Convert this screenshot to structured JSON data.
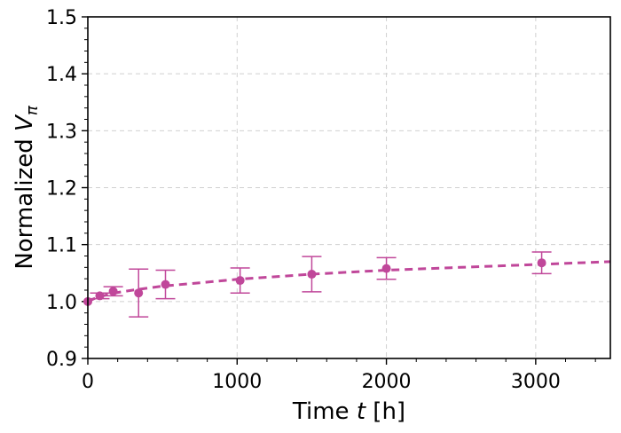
{
  "chart_data": {
    "type": "scatter",
    "xlabel_prefix": "Time ",
    "xlabel_var": "t",
    "xlabel_suffix": " [h]",
    "ylabel_prefix": "Normalized ",
    "ylabel_var": "V",
    "ylabel_sub": "π",
    "xlim": [
      0,
      3500
    ],
    "ylim": [
      0.9,
      1.5
    ],
    "xticks": [
      0,
      1000,
      2000,
      3000
    ],
    "xtick_labels": [
      "0",
      "1000",
      "2000",
      "3000"
    ],
    "yticks": [
      0.9,
      1.0,
      1.1,
      1.2,
      1.3,
      1.4,
      1.5
    ],
    "ytick_labels": [
      "0.9",
      "1.0",
      "1.1",
      "1.2",
      "1.3",
      "1.4",
      "1.5"
    ],
    "grid": true,
    "color": "#c0479a",
    "series": [
      {
        "x": [
          0,
          80,
          170,
          340,
          520,
          1020,
          1500,
          2000,
          3040
        ],
        "y": [
          1.0,
          1.01,
          1.018,
          1.015,
          1.03,
          1.037,
          1.048,
          1.058,
          1.068
        ],
        "err": [
          0.0,
          0.005,
          0.008,
          0.042,
          0.025,
          0.022,
          0.031,
          0.019,
          0.019
        ]
      }
    ],
    "fit": {
      "style": "dashed",
      "x": [
        0,
        50,
        100,
        200,
        300,
        500,
        750,
        1000,
        1500,
        2000,
        2500,
        3000,
        3500
      ],
      "y": [
        1.0,
        1.006,
        1.01,
        1.016,
        1.02,
        1.027,
        1.033,
        1.039,
        1.048,
        1.055,
        1.06,
        1.065,
        1.07
      ]
    }
  }
}
